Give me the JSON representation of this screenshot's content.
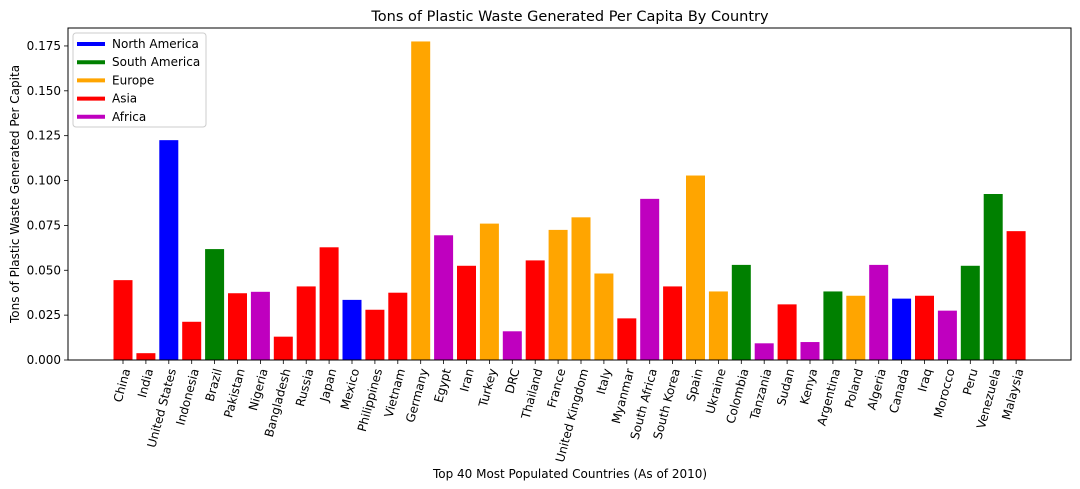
{
  "chart_data": {
    "type": "bar",
    "title": "Tons of Plastic Waste Generated Per Capita By Country",
    "xlabel": "Top 40 Most Populated Countries (As of 2010)",
    "ylabel": "Tons of Plastic Waste Generated Per Capita",
    "ylim": [
      0,
      0.185
    ],
    "yticks": [
      "0.000",
      "0.025",
      "0.050",
      "0.075",
      "0.100",
      "0.125",
      "0.150",
      "0.175"
    ],
    "grid": false,
    "legend_position": "top-left",
    "legend": [
      {
        "name": "North America",
        "color": "#0000ff"
      },
      {
        "name": "South America",
        "color": "#008000"
      },
      {
        "name": "Europe",
        "color": "#ffa500"
      },
      {
        "name": "Asia",
        "color": "#ff0000"
      },
      {
        "name": "Africa",
        "color": "#bf00bf"
      }
    ],
    "categories": [
      "China",
      "India",
      "United States",
      "Indonesia",
      "Brazil",
      "Pakistan",
      "Nigeria",
      "Bangladesh",
      "Russia",
      "Japan",
      "Mexico",
      "Philippines",
      "Vietnam",
      "Germany",
      "Egypt",
      "Iran",
      "Turkey",
      "DRC",
      "Thailand",
      "France",
      "United Kingdom",
      "Italy",
      "Myanmar",
      "South Africa",
      "South Korea",
      "Spain",
      "Ukraine",
      "Colombia",
      "Tanzania",
      "Sudan",
      "Kenya",
      "Argentina",
      "Poland",
      "Algeria",
      "Canada",
      "Iraq",
      "Morocco",
      "Peru",
      "Venezuela",
      "Malaysia"
    ],
    "values": [
      0.0445,
      0.0038,
      0.1225,
      0.0213,
      0.0618,
      0.0372,
      0.038,
      0.013,
      0.041,
      0.0628,
      0.0335,
      0.028,
      0.0375,
      0.1775,
      0.0695,
      0.0525,
      0.076,
      0.016,
      0.0555,
      0.0725,
      0.0795,
      0.0482,
      0.0232,
      0.0898,
      0.041,
      0.1028,
      0.0382,
      0.053,
      0.0093,
      0.031,
      0.01,
      0.0382,
      0.0358,
      0.053,
      0.0342,
      0.0358,
      0.0275,
      0.0525,
      0.0925,
      0.0718
    ],
    "continents": [
      "Asia",
      "Asia",
      "North America",
      "Asia",
      "South America",
      "Asia",
      "Africa",
      "Asia",
      "Asia",
      "Asia",
      "North America",
      "Asia",
      "Asia",
      "Europe",
      "Africa",
      "Asia",
      "Europe",
      "Africa",
      "Asia",
      "Europe",
      "Europe",
      "Europe",
      "Asia",
      "Africa",
      "Asia",
      "Europe",
      "Europe",
      "South America",
      "Africa",
      "Asia",
      "Africa",
      "South America",
      "Europe",
      "Africa",
      "North America",
      "Asia",
      "Africa",
      "South America",
      "South America",
      "Asia"
    ]
  }
}
